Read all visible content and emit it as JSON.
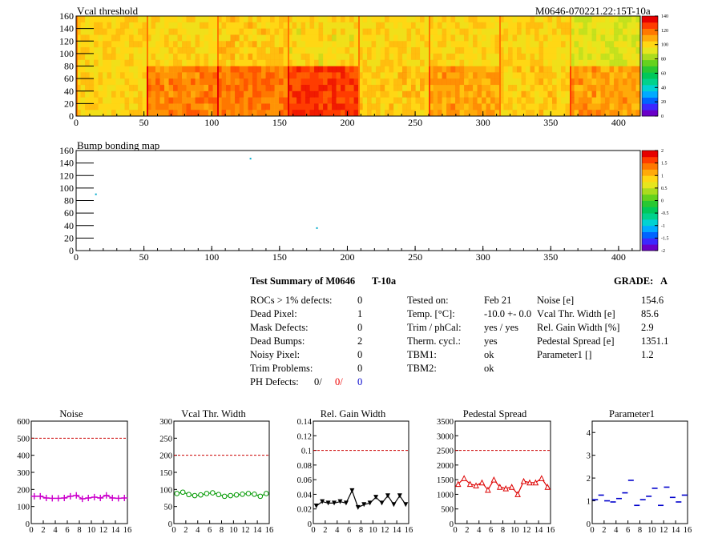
{
  "header": {
    "vcal_title": "Vcal threshold",
    "module_id": "M0646-070221.22:15T-10a",
    "bump_title": "Bump bonding map"
  },
  "chart_data": [
    {
      "type": "heatmap",
      "title": "Vcal threshold",
      "xlim": [
        0,
        416
      ],
      "ylim": [
        0,
        160
      ],
      "xticks": [
        0,
        50,
        100,
        150,
        200,
        250,
        300,
        350,
        400
      ],
      "yticks": [
        0,
        20,
        40,
        60,
        80,
        100,
        120,
        140,
        160
      ],
      "zlim": [
        0,
        140
      ],
      "zticks": [
        0,
        20,
        40,
        60,
        80,
        100,
        120,
        140
      ],
      "roc_columns": 8,
      "roc_rows": 2,
      "roc_mean_top": [
        102,
        100,
        104,
        98,
        100,
        100,
        100,
        92
      ],
      "roc_mean_bottom": [
        100,
        114,
        118,
        128,
        104,
        112,
        104,
        112
      ],
      "palette": [
        "#6a00c8",
        "#3c28ff",
        "#0064ff",
        "#00aaff",
        "#00d2d2",
        "#00d28c",
        "#00c85a",
        "#28c832",
        "#64d21e",
        "#aadc1e",
        "#e6e61e",
        "#ffd714",
        "#ffaa0a",
        "#ff7800",
        "#ff3c00",
        "#e60000"
      ]
    },
    {
      "type": "heatmap",
      "title": "Bump bonding map",
      "xlim": [
        0,
        416
      ],
      "ylim": [
        0,
        160
      ],
      "xticks": [
        0,
        50,
        100,
        150,
        200,
        250,
        300,
        350,
        400
      ],
      "yticks": [
        0,
        20,
        40,
        60,
        80,
        100,
        120,
        140,
        160
      ],
      "zlim": [
        -2,
        2
      ],
      "zticks": [
        -2,
        -1.5,
        -1,
        -0.5,
        0,
        0.5,
        1,
        1.5,
        2
      ],
      "points": [
        {
          "x": 14,
          "y": 90
        },
        {
          "x": 128,
          "y": 147
        },
        {
          "x": 177,
          "y": 36
        }
      ],
      "palette": [
        "#6a00c8",
        "#3c28ff",
        "#0064ff",
        "#00aaff",
        "#00d2d2",
        "#00d28c",
        "#00c85a",
        "#28c832",
        "#64d21e",
        "#aadc1e",
        "#e6e61e",
        "#ffd714",
        "#ffaa0a",
        "#ff7800",
        "#ff3c00",
        "#e60000"
      ]
    },
    {
      "type": "line",
      "title": "Noise",
      "xlim": [
        0,
        16
      ],
      "ylim": [
        0,
        600
      ],
      "xticks": [
        0,
        2,
        4,
        6,
        8,
        10,
        12,
        14,
        16
      ],
      "yticks": [
        0,
        100,
        200,
        300,
        400,
        500,
        600
      ],
      "reference": 500,
      "color": "#cc00cc",
      "marker": "cross",
      "x": [
        0,
        1,
        2,
        3,
        4,
        5,
        6,
        7,
        8,
        9,
        10,
        11,
        12,
        13,
        14,
        15
      ],
      "values": [
        160,
        160,
        150,
        148,
        148,
        150,
        160,
        165,
        145,
        150,
        155,
        150,
        165,
        150,
        148,
        150
      ]
    },
    {
      "type": "line",
      "title": "Vcal Thr. Width",
      "xlim": [
        0,
        16
      ],
      "ylim": [
        0,
        300
      ],
      "xticks": [
        0,
        2,
        4,
        6,
        8,
        10,
        12,
        14,
        16
      ],
      "yticks": [
        0,
        50,
        100,
        150,
        200,
        250,
        300
      ],
      "reference": 200,
      "color": "#009900",
      "marker": "circle",
      "x": [
        0,
        1,
        2,
        3,
        4,
        5,
        6,
        7,
        8,
        9,
        10,
        11,
        12,
        13,
        14,
        15
      ],
      "values": [
        88,
        92,
        85,
        82,
        84,
        88,
        90,
        85,
        80,
        82,
        84,
        86,
        88,
        86,
        80,
        88
      ]
    },
    {
      "type": "line",
      "title": "Rel. Gain Width",
      "xlim": [
        0,
        16
      ],
      "ylim": [
        0,
        0.14
      ],
      "xticks": [
        0,
        2,
        4,
        6,
        8,
        10,
        12,
        14,
        16
      ],
      "yticks": [
        0,
        0.02,
        0.04,
        0.06,
        0.08,
        0.1,
        0.12,
        0.14
      ],
      "reference": 0.1,
      "color": "#000000",
      "marker": "triangle-down",
      "x": [
        0,
        1,
        2,
        3,
        4,
        5,
        6,
        7,
        8,
        9,
        10,
        11,
        12,
        13,
        14,
        15
      ],
      "values": [
        0.024,
        0.03,
        0.028,
        0.028,
        0.03,
        0.028,
        0.045,
        0.022,
        0.026,
        0.028,
        0.036,
        0.028,
        0.038,
        0.026,
        0.038,
        0.026
      ]
    },
    {
      "type": "line",
      "title": "Pedestal Spread",
      "xlim": [
        0,
        16
      ],
      "ylim": [
        0,
        3500
      ],
      "xticks": [
        0,
        2,
        4,
        6,
        8,
        10,
        12,
        14,
        16
      ],
      "yticks": [
        0,
        500,
        1000,
        1500,
        2000,
        2500,
        3000,
        3500
      ],
      "reference": 2500,
      "color": "#dd0000",
      "marker": "triangle-up",
      "x": [
        0,
        1,
        2,
        3,
        4,
        5,
        6,
        7,
        8,
        9,
        10,
        11,
        12,
        13,
        14,
        15
      ],
      "values": [
        1350,
        1550,
        1350,
        1300,
        1400,
        1150,
        1500,
        1250,
        1200,
        1250,
        1000,
        1450,
        1400,
        1400,
        1550,
        1250
      ]
    },
    {
      "type": "scatter",
      "title": "Parameter1",
      "xlim": [
        0,
        16
      ],
      "ylim": [
        0,
        4.5
      ],
      "xticks": [
        0,
        2,
        4,
        6,
        8,
        10,
        12,
        14,
        16
      ],
      "yticks": [
        0,
        1,
        2,
        3,
        4
      ],
      "color": "#0000cc",
      "marker": "hbar",
      "x": [
        0,
        1,
        2,
        3,
        4,
        5,
        6,
        7,
        8,
        9,
        10,
        11,
        12,
        13,
        14,
        15
      ],
      "values": [
        1.05,
        1.25,
        1.0,
        0.95,
        1.1,
        1.35,
        1.9,
        0.8,
        1.05,
        1.2,
        1.55,
        0.8,
        1.6,
        1.15,
        0.95,
        1.25
      ]
    }
  ],
  "summary": {
    "title": "Test Summary of M0646",
    "temp_label": "T-10a",
    "grade_label": "GRADE:",
    "grade_value": "A",
    "left_rows": [
      {
        "label": "ROCs > 1% defects:",
        "value": "0"
      },
      {
        "label": "Dead Pixel:",
        "value": "1"
      },
      {
        "label": "Mask Defects:",
        "value": "0"
      },
      {
        "label": "Dead Bumps:",
        "value": "2"
      },
      {
        "label": "Noisy Pixel:",
        "value": "0"
      },
      {
        "label": "Trim Problems:",
        "value": "0"
      }
    ],
    "ph_label": "PH Defects:",
    "ph_values": [
      "0/",
      "0/",
      "0"
    ],
    "mid_rows": [
      {
        "label": "Tested on:",
        "value": "Feb 21"
      },
      {
        "label": "Temp. [°C]:",
        "value": "-10.0 +- 0.0"
      },
      {
        "label": "Trim / phCal:",
        "value": "yes / yes"
      },
      {
        "label": "Therm. cycl.:",
        "value": "yes"
      },
      {
        "label": "TBM1:",
        "value": "ok"
      },
      {
        "label": "TBM2:",
        "value": "ok"
      }
    ],
    "right_rows": [
      {
        "label": "Noise [e]",
        "value": "154.6"
      },
      {
        "label": "Vcal Thr. Width [e]",
        "value": "85.6"
      },
      {
        "label": "Rel. Gain Width [%]",
        "value": "2.9"
      },
      {
        "label": "Pedestal Spread [e]",
        "value": "1351.1"
      },
      {
        "label": "Parameter1 []",
        "value": "1.2"
      }
    ]
  }
}
